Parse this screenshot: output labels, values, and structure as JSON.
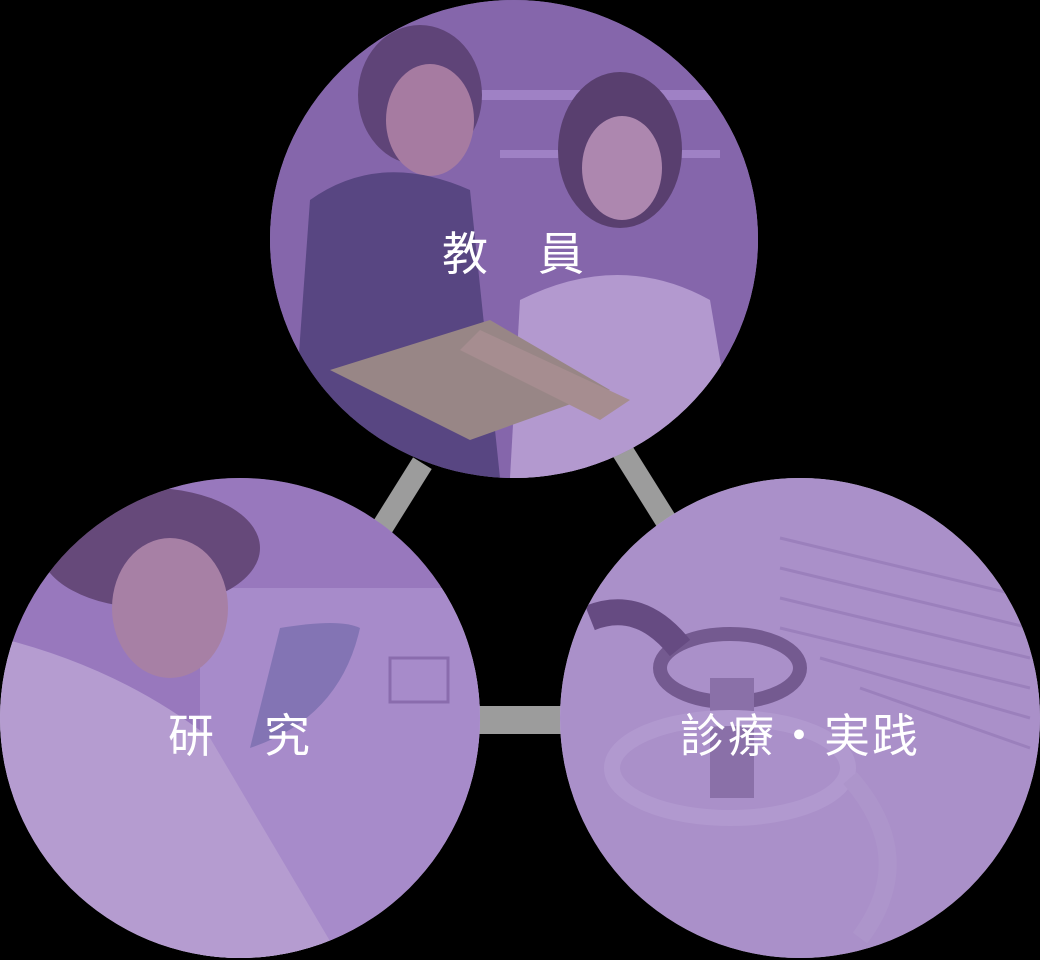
{
  "circles": {
    "faculty": {
      "label": "教　員",
      "tint": "#8a62b8"
    },
    "research": {
      "label": "研　究",
      "tint": "#8a62b8"
    },
    "practice": {
      "label": "診療・実践",
      "tint": "#8a62b8"
    }
  },
  "connector_color": "#9c9c9c",
  "background_color": "#000000"
}
